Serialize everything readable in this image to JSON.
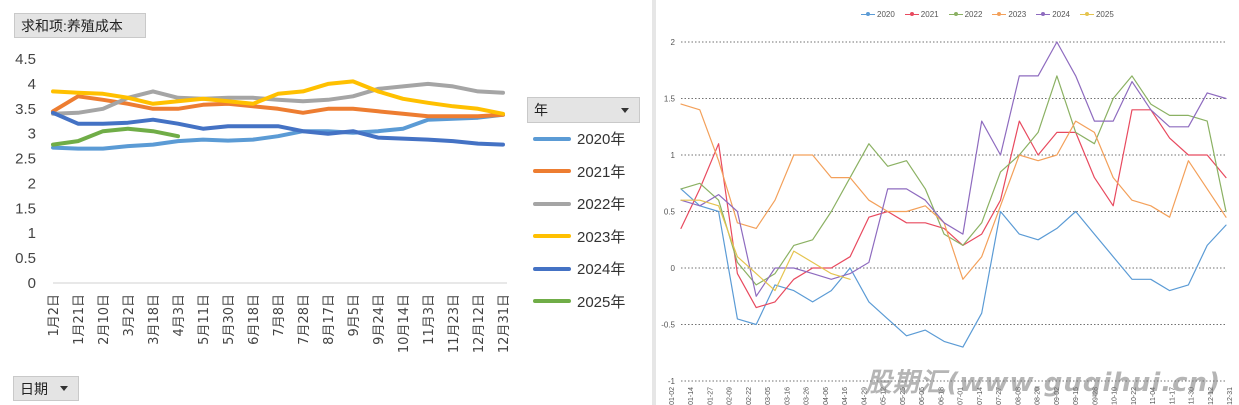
{
  "left_chart": {
    "field_button": "求和项:养殖成本",
    "legend_title": "年",
    "axis_button": "日期",
    "legend": [
      {
        "name": "2020年",
        "color": "#5b9bd5"
      },
      {
        "name": "2021年",
        "color": "#ed7d31"
      },
      {
        "name": "2022年",
        "color": "#a5a5a5"
      },
      {
        "name": "2023年",
        "color": "#ffc000"
      },
      {
        "name": "2024年",
        "color": "#4472c4"
      },
      {
        "name": "2025年",
        "color": "#70ad47"
      }
    ]
  },
  "right_chart": {
    "legend": [
      {
        "name": "2020",
        "color": "#5b9bd5"
      },
      {
        "name": "2021",
        "color": "#e84a5f"
      },
      {
        "name": "2022",
        "color": "#8bb163"
      },
      {
        "name": "2023",
        "color": "#f3a05a"
      },
      {
        "name": "2024",
        "color": "#8e6bbf"
      },
      {
        "name": "2025",
        "color": "#e5c44f"
      }
    ]
  },
  "watermark": "股期汇(www.guqihui.cn)",
  "chart_data": [
    {
      "type": "line",
      "ylim": [
        0,
        4.5
      ],
      "yticks": [
        "0",
        "0.5",
        "1",
        "1.5",
        "2",
        "2.5",
        "3",
        "3.5",
        "4",
        "4.5"
      ],
      "categories": [
        "1月2日",
        "1月21日",
        "2月10日",
        "3月2日",
        "3月18日",
        "4月3日",
        "5月11日",
        "5月30日",
        "6月18日",
        "7月8日",
        "7月28日",
        "8月17日",
        "9月5日",
        "9月24日",
        "10月14日",
        "11月3日",
        "11月23日",
        "12月12日",
        "12月31日"
      ],
      "series": [
        {
          "name": "2020年",
          "color": "#5b9bd5",
          "values": [
            2.72,
            2.7,
            2.7,
            2.75,
            2.78,
            2.85,
            2.88,
            2.86,
            2.88,
            2.95,
            3.05,
            3.05,
            3.02,
            3.05,
            3.1,
            3.28,
            3.3,
            3.32,
            3.38
          ]
        },
        {
          "name": "2021年",
          "color": "#ed7d31",
          "values": [
            3.45,
            3.75,
            3.68,
            3.6,
            3.5,
            3.5,
            3.58,
            3.6,
            3.55,
            3.5,
            3.42,
            3.5,
            3.5,
            3.45,
            3.4,
            3.35,
            3.35,
            3.35,
            3.38
          ]
        },
        {
          "name": "2022年",
          "color": "#a5a5a5",
          "values": [
            3.4,
            3.42,
            3.5,
            3.72,
            3.85,
            3.72,
            3.7,
            3.72,
            3.72,
            3.68,
            3.65,
            3.68,
            3.75,
            3.9,
            3.95,
            4.0,
            3.95,
            3.85,
            3.82
          ]
        },
        {
          "name": "2023年",
          "color": "#ffc000",
          "values": [
            3.85,
            3.82,
            3.8,
            3.72,
            3.6,
            3.65,
            3.7,
            3.65,
            3.6,
            3.8,
            3.85,
            4.0,
            4.05,
            3.85,
            3.7,
            3.62,
            3.55,
            3.5,
            3.4
          ]
        },
        {
          "name": "2024年",
          "color": "#4472c4",
          "values": [
            3.42,
            3.2,
            3.2,
            3.22,
            3.28,
            3.2,
            3.1,
            3.15,
            3.15,
            3.15,
            3.05,
            3.0,
            3.05,
            2.92,
            2.9,
            2.88,
            2.85,
            2.8,
            2.78
          ]
        },
        {
          "name": "2025年",
          "color": "#70ad47",
          "values": [
            2.78,
            2.85,
            3.05,
            3.1,
            3.05,
            2.95,
            null,
            null,
            null,
            null,
            null,
            null,
            null,
            null,
            null,
            null,
            null,
            null,
            null
          ]
        }
      ]
    },
    {
      "type": "line",
      "ylim": [
        -1,
        2
      ],
      "yticks": [
        "-1",
        "-0.5",
        "0",
        "0.5",
        "1",
        "1.5",
        "2"
      ],
      "grid": true,
      "categories": [
        "01-02",
        "01-14",
        "01-27",
        "02-09",
        "02-22",
        "03-05",
        "03-16",
        "03-26",
        "04-06",
        "04-16",
        "04-29",
        "05-12",
        "05-25",
        "06-05",
        "06-18",
        "07-01",
        "07-14",
        "07-27",
        "08-08",
        "08-20",
        "09-02",
        "09-15",
        "09-28",
        "10-10",
        "10-22",
        "11-04",
        "11-17",
        "11-30",
        "12-12",
        "12-31"
      ],
      "series": [
        {
          "name": "2020",
          "color": "#5b9bd5",
          "values": [
            0.7,
            0.55,
            0.5,
            -0.45,
            -0.5,
            -0.15,
            -0.2,
            -0.3,
            -0.2,
            0.0,
            -0.3,
            -0.45,
            -0.6,
            -0.55,
            -0.65,
            -0.7,
            -0.4,
            0.5,
            0.3,
            0.25,
            0.35,
            0.5,
            0.3,
            0.1,
            -0.1,
            -0.1,
            -0.2,
            -0.15,
            0.2,
            0.38
          ]
        },
        {
          "name": "2021",
          "color": "#e84a5f",
          "values": [
            0.35,
            0.7,
            1.1,
            -0.05,
            -0.35,
            -0.3,
            -0.1,
            0.0,
            0.0,
            0.1,
            0.45,
            0.5,
            0.4,
            0.4,
            0.35,
            0.2,
            0.3,
            0.6,
            1.3,
            1.0,
            1.2,
            1.2,
            0.8,
            0.55,
            1.4,
            1.4,
            1.15,
            1.0,
            1.0,
            0.8
          ]
        },
        {
          "name": "2022",
          "color": "#8bb163",
          "values": [
            0.7,
            0.75,
            0.6,
            0.05,
            -0.15,
            -0.05,
            0.2,
            0.25,
            0.5,
            0.8,
            1.1,
            0.9,
            0.95,
            0.7,
            0.3,
            0.2,
            0.4,
            0.85,
            1.0,
            1.2,
            1.7,
            1.2,
            1.1,
            1.5,
            1.7,
            1.45,
            1.35,
            1.35,
            1.3,
            0.5
          ]
        },
        {
          "name": "2023",
          "color": "#f3a05a",
          "values": [
            1.45,
            1.4,
            0.95,
            0.4,
            0.35,
            0.6,
            1.0,
            1.0,
            0.8,
            0.8,
            0.6,
            0.5,
            0.5,
            0.55,
            0.4,
            -0.1,
            0.1,
            0.55,
            1.0,
            0.95,
            1.0,
            1.3,
            1.2,
            0.8,
            0.6,
            0.55,
            0.45,
            0.95,
            0.7,
            0.45
          ]
        },
        {
          "name": "2024",
          "color": "#8e6bbf",
          "values": [
            0.6,
            0.55,
            0.65,
            0.5,
            -0.25,
            0.0,
            0.0,
            -0.05,
            -0.1,
            -0.05,
            0.05,
            0.7,
            0.7,
            0.6,
            0.4,
            0.3,
            1.3,
            1.0,
            1.7,
            1.7,
            2.0,
            1.7,
            1.3,
            1.3,
            1.65,
            1.4,
            1.25,
            1.25,
            1.55,
            1.5
          ]
        },
        {
          "name": "2025",
          "color": "#e5c44f",
          "values": [
            0.6,
            0.6,
            0.55,
            0.1,
            -0.05,
            -0.2,
            0.15,
            0.05,
            -0.05,
            -0.1,
            null,
            null,
            null,
            null,
            null,
            null,
            null,
            null,
            null,
            null,
            null,
            null,
            null,
            null,
            null,
            null,
            null,
            null,
            null,
            null
          ]
        }
      ]
    }
  ]
}
